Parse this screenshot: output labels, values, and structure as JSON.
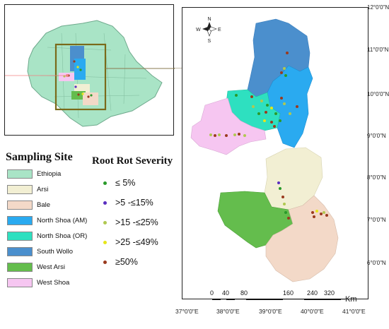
{
  "inset_map": {
    "country": "Ethiopia"
  },
  "north_arrow": {
    "n": "N",
    "s": "S",
    "e": "E",
    "w": "W"
  },
  "lat_labels": [
    "12°0'0\"N",
    "11°0'0\"N",
    "10°0'0\"N",
    "9°0'0\"N",
    "8°0'0\"N",
    "7°0'0\"N",
    "6°0'0\"N"
  ],
  "lon_labels": [
    "37°0'0\"E",
    "38°0'0\"E",
    "39°0'0\"E",
    "40°0'0\"E",
    "41°0'0\"E"
  ],
  "scale_bar": {
    "ticks": [
      "0",
      "40",
      "80",
      "160",
      "240",
      "320"
    ],
    "unit": "Km"
  },
  "legend": {
    "title": "Sampling Site",
    "items": [
      {
        "label": "Ethiopia",
        "color": "#a9e4c6"
      },
      {
        "label": "Arsi",
        "color": "#f2efd3"
      },
      {
        "label": "Bale",
        "color": "#f3d9c8"
      },
      {
        "label": "North Shoa (AM)",
        "color": "#2aaaf0"
      },
      {
        "label": "North  Shoa (OR)",
        "color": "#2ee0c0"
      },
      {
        "label": "South Wollo",
        "color": "#4b8fcd"
      },
      {
        "label": "West Arsi",
        "color": "#64bd4d"
      },
      {
        "label": "West Shoa",
        "color": "#f6c6f1"
      }
    ]
  },
  "severity": {
    "title": "Root Rot Severity",
    "items": [
      {
        "label": "≤ 5%",
        "color": "#2a9a2a"
      },
      {
        "label": ">5 -≤15%",
        "color": "#5a2fc0"
      },
      {
        "label": ">15 -≤25%",
        "color": "#b0c850"
      },
      {
        "label": ">25 -≤49%",
        "color": "#e6e61a"
      },
      {
        "label": "≥50%",
        "color": "#9a3a1e"
      }
    ]
  }
}
